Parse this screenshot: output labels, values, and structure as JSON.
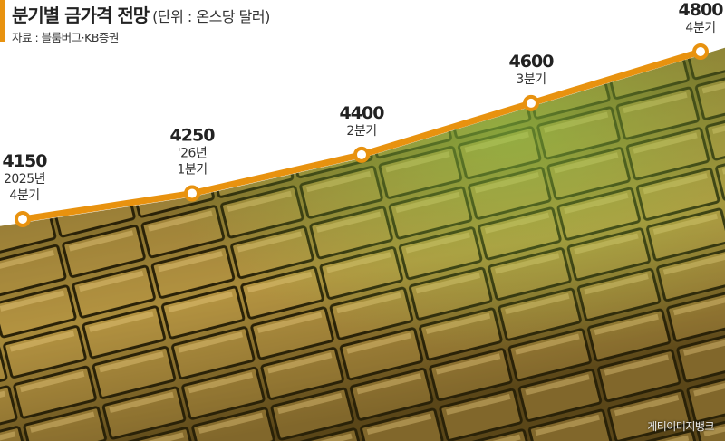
{
  "header": {
    "title": "분기별 금가격 전망",
    "unit": "(단위 : 온스당 달러)",
    "source": "자료 : 블룸버그·KB증권"
  },
  "credit": "게티이미지뱅크",
  "colors": {
    "line": "#E8920F",
    "accent": "#E8920F",
    "background_photo": "gold bars"
  },
  "chart_data": {
    "type": "line",
    "title": "분기별 금가격 전망",
    "ylabel": "(단위 : 온스당 달러)",
    "categories": [
      [
        "2025년",
        "4분기"
      ],
      [
        "'26년",
        "1분기"
      ],
      [
        "2분기"
      ],
      [
        "3분기"
      ],
      [
        "4분기"
      ]
    ],
    "values": [
      4150,
      4250,
      4400,
      4600,
      4800
    ],
    "data_labels": [
      "4150",
      "4250",
      "4400",
      "4600",
      "4800"
    ],
    "grid": false
  }
}
